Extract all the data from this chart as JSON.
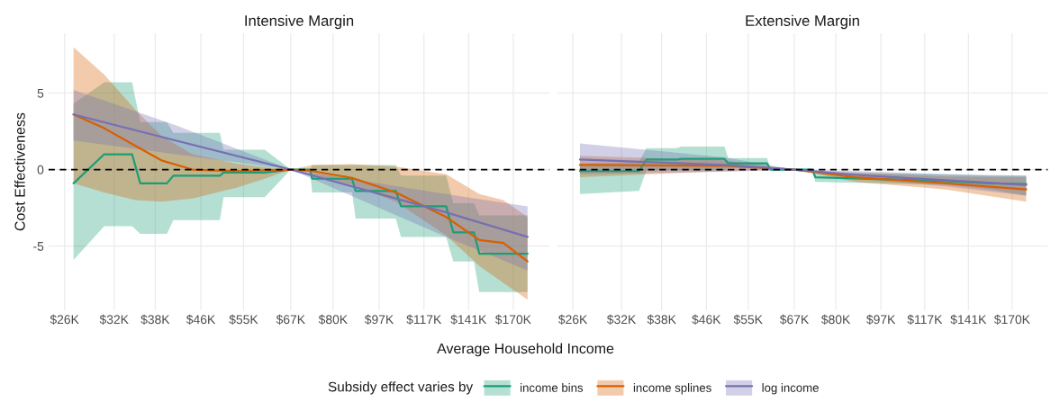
{
  "chart_data": [
    {
      "type": "line",
      "title": "Intensive Margin",
      "xlabel": "Average Household Income",
      "ylabel": "Cost Effectiveness",
      "legend_title": "Subsidy effect varies by",
      "legend": "bottom",
      "grid": true,
      "log": "x",
      "xlim": [
        24.3,
        198
      ],
      "ylim": [
        -9.2,
        8.9
      ],
      "yticks": [
        -5,
        0,
        5
      ],
      "xticks": [
        {
          "value": 26,
          "label": "$26K"
        },
        {
          "value": 32,
          "label": "$32K"
        },
        {
          "value": 38,
          "label": "$38K"
        },
        {
          "value": 46,
          "label": "$46K"
        },
        {
          "value": 55,
          "label": "$55K"
        },
        {
          "value": 67,
          "label": "$67K"
        },
        {
          "value": 80,
          "label": "$80K"
        },
        {
          "value": 97,
          "label": "$97K"
        },
        {
          "value": 117,
          "label": "$117K"
        },
        {
          "value": 141,
          "label": "$141K"
        },
        {
          "value": 170,
          "label": "$170K"
        }
      ],
      "ref_lines": [
        {
          "axis": "y",
          "value": 0,
          "color": "#000000",
          "line_style": "dashed"
        }
      ],
      "series": [
        {
          "name": "income bins",
          "color": "#1b9e77",
          "x": [
            27.0,
            30.7,
            34.5,
            35.7,
            39.9,
            41.0,
            49.8,
            50.6,
            60.1,
            67,
            72.6,
            73.3,
            86.6,
            87.9,
            104,
            106.3,
            128.4,
            132.3,
            144.2,
            147.5,
            180.5
          ],
          "values": [
            -0.9,
            1.0,
            1.0,
            -0.9,
            -0.9,
            -0.4,
            -0.4,
            -0.2,
            -0.2,
            0,
            0,
            -0.6,
            -0.6,
            -1.4,
            -1.4,
            -2.4,
            -2.4,
            -4.1,
            -4.1,
            -5.5,
            -5.5
          ],
          "lower": [
            -5.9,
            -3.7,
            -3.7,
            -4.2,
            -4.2,
            -3.3,
            -3.3,
            -1.8,
            -1.8,
            0,
            0,
            -1.5,
            -1.5,
            -3.2,
            -3.2,
            -4.4,
            -4.4,
            -6.0,
            -6.0,
            -8.0,
            -8.0
          ],
          "upper": [
            4.3,
            5.7,
            5.7,
            3.1,
            3.1,
            2.4,
            2.4,
            1.3,
            1.3,
            0,
            0,
            0.3,
            0.3,
            0.3,
            0.3,
            -0.4,
            -0.4,
            -2.2,
            -2.2,
            -3.0,
            -3.0
          ]
        },
        {
          "name": "income splines",
          "color": "#d95f02",
          "x": [
            27.0,
            30.7,
            35.0,
            39.0,
            44.4,
            53.2,
            60.1,
            67,
            73.3,
            86.6,
            104,
            128.4,
            147.5,
            163.1,
            180.5
          ],
          "values": [
            3.6,
            2.7,
            1.55,
            0.6,
            0.0,
            -0.1,
            -0.05,
            0,
            -0.1,
            -0.55,
            -1.5,
            -3.1,
            -4.6,
            -4.8,
            -6.0
          ],
          "lower": [
            -0.9,
            -1.5,
            -2.0,
            -2.1,
            -1.9,
            -1.2,
            -0.6,
            0,
            -0.4,
            -1.0,
            -2.1,
            -4.3,
            -6.3,
            -7.4,
            -8.5
          ],
          "upper": [
            8.0,
            6.2,
            3.9,
            2.2,
            1.0,
            0.4,
            0.15,
            0,
            0.3,
            0.35,
            0.2,
            -0.3,
            -1.6,
            -2.0,
            -3.1
          ]
        },
        {
          "name": "log income",
          "color": "#7570b3",
          "x": [
            27.0,
            41.4,
            67,
            128.4,
            180.5
          ],
          "values": [
            3.6,
            1.9,
            0,
            -2.8,
            -4.4
          ],
          "lower": [
            1.9,
            1.0,
            0,
            -4.4,
            -6.6
          ],
          "upper": [
            5.2,
            2.9,
            0,
            -1.6,
            -2.4
          ]
        }
      ]
    },
    {
      "type": "line",
      "title": "Extensive Margin",
      "grid": true,
      "log": "x",
      "tick_labels": "x",
      "xlim": [
        24.3,
        198
      ],
      "ylim": [
        -9.2,
        8.9
      ],
      "yticks": [
        -5,
        0,
        5
      ],
      "xticks": [
        {
          "value": 26,
          "label": "$26K"
        },
        {
          "value": 32,
          "label": "$32K"
        },
        {
          "value": 38,
          "label": "$38K"
        },
        {
          "value": 46,
          "label": "$46K"
        },
        {
          "value": 55,
          "label": "$55K"
        },
        {
          "value": 67,
          "label": "$67K"
        },
        {
          "value": 80,
          "label": "$80K"
        },
        {
          "value": 97,
          "label": "$97K"
        },
        {
          "value": 117,
          "label": "$117K"
        },
        {
          "value": 141,
          "label": "$141K"
        },
        {
          "value": 170,
          "label": "$170K"
        }
      ],
      "ref_lines": [
        {
          "axis": "y",
          "value": 0,
          "color": "#000000",
          "line_style": "dashed"
        }
      ],
      "series": [
        {
          "color": "#1b9e77",
          "x": [
            26.8,
            34.5,
            35.6,
            40.5,
            41.3,
            49.7,
            50.5,
            59.6,
            60.6,
            72.3,
            73.3,
            128.2,
            154.8,
            180.5
          ],
          "values": [
            -0.1,
            -0.1,
            0.65,
            0.65,
            0.7,
            0.7,
            0.4,
            0.4,
            0,
            0,
            -0.5,
            -0.75,
            -0.9,
            -0.95
          ],
          "lower": [
            -1.6,
            -1.4,
            -0.05,
            -0.05,
            -0.05,
            -0.05,
            0.1,
            0.1,
            -0.05,
            -0.05,
            -0.8,
            -1.0,
            -1.3,
            -1.7
          ],
          "upper": [
            0.4,
            0.5,
            1.4,
            1.4,
            1.5,
            1.5,
            0.75,
            0.75,
            0.05,
            0.05,
            -0.2,
            -0.3,
            -0.4,
            -0.4
          ]
        },
        {
          "color": "#d95f02",
          "x": [
            26.8,
            49.7,
            67,
            87.2,
            128.2,
            180.5
          ],
          "values": [
            0.3,
            0.25,
            0,
            -0.5,
            -0.9,
            -1.3
          ],
          "lower": [
            -0.5,
            -0.1,
            0,
            -0.8,
            -1.3,
            -2.1
          ],
          "upper": [
            0.9,
            0.6,
            0,
            -0.2,
            -0.45,
            -0.5
          ]
        },
        {
          "color": "#7570b3",
          "x": [
            26.8,
            49.7,
            67,
            87.2,
            128.2,
            180.5
          ],
          "values": [
            0.65,
            0.3,
            0,
            -0.35,
            -0.7,
            -1.0
          ],
          "lower": [
            -0.3,
            -0.15,
            0,
            -0.6,
            -1.1,
            -1.7
          ],
          "upper": [
            1.7,
            0.8,
            0,
            -0.1,
            -0.3,
            -0.4
          ]
        }
      ]
    }
  ]
}
